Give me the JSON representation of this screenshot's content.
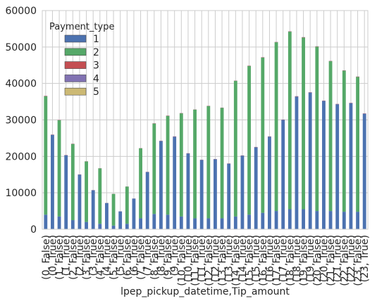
{
  "chart_data": {
    "type": "bar",
    "stacked": true,
    "xlabel": "lpep_pickup_datetime,Tip_amount",
    "ylabel": "",
    "ylim": [
      0,
      60000
    ],
    "yticks": [
      0,
      10000,
      20000,
      30000,
      40000,
      50000,
      60000
    ],
    "grid": true,
    "legend": {
      "title": "Payment_type",
      "placement": "top-left"
    },
    "categories": [
      "(0, False)",
      "(0, True)",
      "(1, False)",
      "(1, True)",
      "(2, False)",
      "(2, True)",
      "(3, False)",
      "(3, True)",
      "(4, False)",
      "(4, True)",
      "(5, False)",
      "(5, True)",
      "(6, False)",
      "(6, True)",
      "(7, False)",
      "(7, True)",
      "(8, False)",
      "(8, True)",
      "(9, False)",
      "(9, True)",
      "(10, False)",
      "(10, True)",
      "(11, False)",
      "(11, True)",
      "(12, False)",
      "(12, True)",
      "(13, False)",
      "(13, True)",
      "(14, False)",
      "(14, True)",
      "(15, False)",
      "(15, True)",
      "(16, False)",
      "(16, True)",
      "(17, False)",
      "(17, True)",
      "(18, False)",
      "(18, True)",
      "(19, False)",
      "(19, True)",
      "(20, False)",
      "(20, True)",
      "(21, False)",
      "(21, True)",
      "(22, False)",
      "(22, True)",
      "(23, False)",
      "(23, True)"
    ],
    "series": [
      {
        "name": "1",
        "color": "#4c72b0",
        "values": [
          4000,
          25900,
          3500,
          20300,
          2500,
          15000,
          2000,
          10700,
          1500,
          7200,
          1000,
          4900,
          1500,
          8400,
          3000,
          15700,
          4200,
          24200,
          4000,
          25400,
          3500,
          20800,
          3000,
          19000,
          3000,
          19200,
          3000,
          18000,
          3500,
          20200,
          4000,
          22500,
          4500,
          25400,
          5000,
          30000,
          5500,
          36400,
          5500,
          37500,
          5000,
          35200,
          5000,
          34300,
          4800,
          34600,
          4800,
          31700
        ]
      },
      {
        "name": "2",
        "color": "#55a868",
        "values": [
          32500,
          0,
          26400,
          0,
          20900,
          0,
          16600,
          0,
          15200,
          0,
          8700,
          0,
          10200,
          0,
          19200,
          0,
          24800,
          0,
          27100,
          0,
          28300,
          0,
          29800,
          0,
          30800,
          0,
          30300,
          0,
          37200,
          0,
          40800,
          0,
          42600,
          0,
          46300,
          0,
          48700,
          0,
          47100,
          0,
          45100,
          0,
          41100,
          0,
          38700,
          0,
          37000,
          0
        ]
      },
      {
        "name": "3",
        "color": "#c44e52",
        "values": [
          80,
          60,
          70,
          50,
          50,
          40,
          40,
          30,
          30,
          20,
          20,
          15,
          20,
          20,
          40,
          40,
          60,
          60,
          60,
          60,
          60,
          50,
          50,
          50,
          50,
          50,
          50,
          50,
          60,
          50,
          60,
          60,
          70,
          60,
          70,
          70,
          80,
          80,
          80,
          80,
          70,
          70,
          70,
          70,
          70,
          70,
          70,
          70
        ]
      },
      {
        "name": "4",
        "color": "#8172b2",
        "values": [
          40,
          30,
          35,
          25,
          25,
          20,
          20,
          15,
          15,
          10,
          10,
          8,
          10,
          10,
          20,
          20,
          30,
          30,
          30,
          30,
          30,
          25,
          25,
          25,
          25,
          25,
          25,
          25,
          30,
          25,
          30,
          30,
          35,
          30,
          35,
          35,
          40,
          40,
          40,
          40,
          35,
          35,
          35,
          35,
          35,
          35,
          35,
          35
        ]
      },
      {
        "name": "5",
        "color": "#ccb974",
        "values": [
          5,
          0,
          5,
          0,
          5,
          0,
          5,
          0,
          5,
          0,
          5,
          0,
          5,
          0,
          5,
          0,
          5,
          0,
          5,
          0,
          5,
          0,
          5,
          0,
          5,
          0,
          5,
          0,
          5,
          0,
          5,
          0,
          5,
          0,
          5,
          0,
          5,
          0,
          5,
          0,
          5,
          0,
          5,
          0,
          5,
          0,
          5,
          0
        ]
      }
    ]
  }
}
